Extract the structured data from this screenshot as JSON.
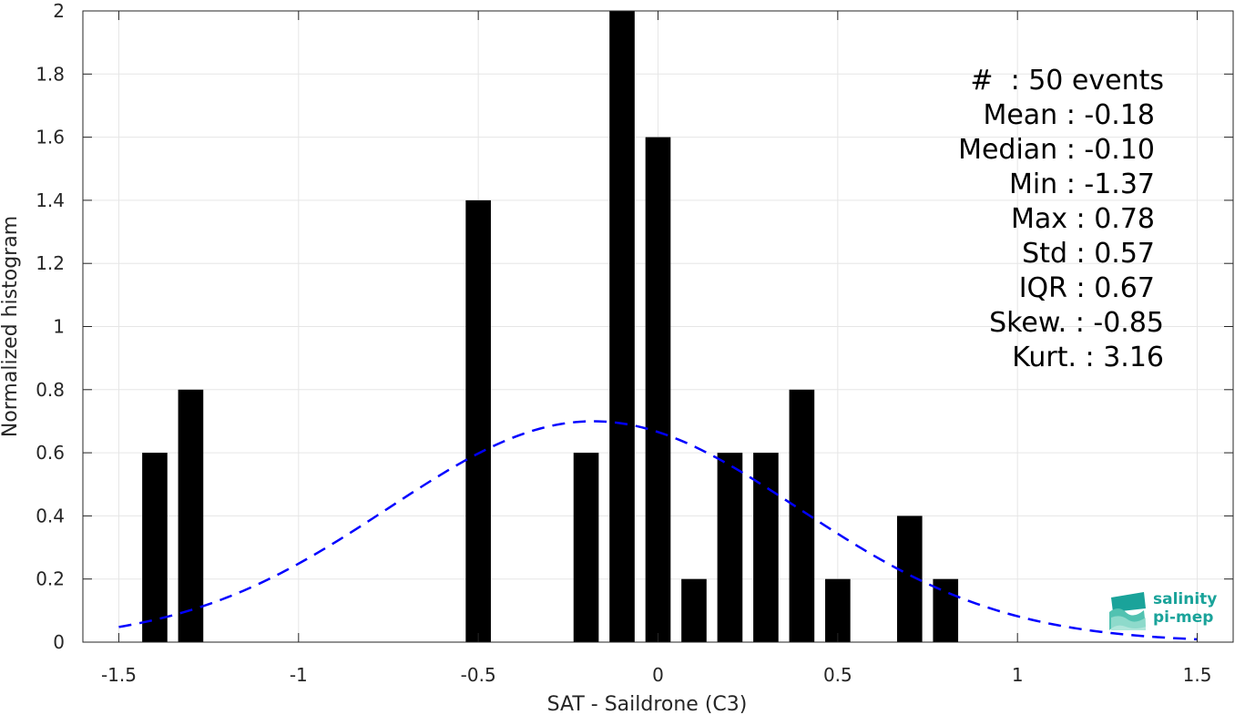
{
  "chart_data": {
    "type": "bar",
    "xlabel": "SAT - Saildrone (C3)",
    "ylabel": "Normalized histogram",
    "xlim": [
      -1.6,
      1.6
    ],
    "ylim": [
      0,
      2
    ],
    "x_ticks": [
      "-1.5",
      "-1",
      "-0.5",
      "0",
      "0.5",
      "1",
      "1.5"
    ],
    "y_ticks": [
      "0",
      "0.2",
      "0.4",
      "0.6",
      "0.8",
      "1",
      "1.2",
      "1.4",
      "1.6",
      "1.8",
      "2"
    ],
    "grid": true,
    "bar_width": 0.07,
    "bars": [
      {
        "x": -1.4,
        "y": 0.6
      },
      {
        "x": -1.3,
        "y": 0.8
      },
      {
        "x": -0.5,
        "y": 1.4
      },
      {
        "x": -0.2,
        "y": 0.6
      },
      {
        "x": -0.1,
        "y": 2.0
      },
      {
        "x": 0.0,
        "y": 1.6
      },
      {
        "x": 0.1,
        "y": 0.2
      },
      {
        "x": 0.2,
        "y": 0.6
      },
      {
        "x": 0.3,
        "y": 0.6
      },
      {
        "x": 0.4,
        "y": 0.8
      },
      {
        "x": 0.5,
        "y": 0.2
      },
      {
        "x": 0.7,
        "y": 0.4
      },
      {
        "x": 0.8,
        "y": 0.2
      }
    ],
    "fit_curve": {
      "style": "dashed",
      "color": "#0000ff",
      "mean": -0.18,
      "std": 0.57,
      "x_range": [
        -1.5,
        1.5
      ]
    },
    "bar_color": "#000000"
  },
  "stats": {
    "lines": [
      "#  : 50 events",
      "Mean : -0.18",
      "Median : -0.10",
      "Min : -1.37",
      "Max : 0.78",
      "Std : 0.57",
      "IQR : 0.67",
      "Skew. : -0.85",
      "Kurt. : 3.16"
    ]
  },
  "logo": {
    "line1": "salinity",
    "line2": "pi-mep"
  }
}
